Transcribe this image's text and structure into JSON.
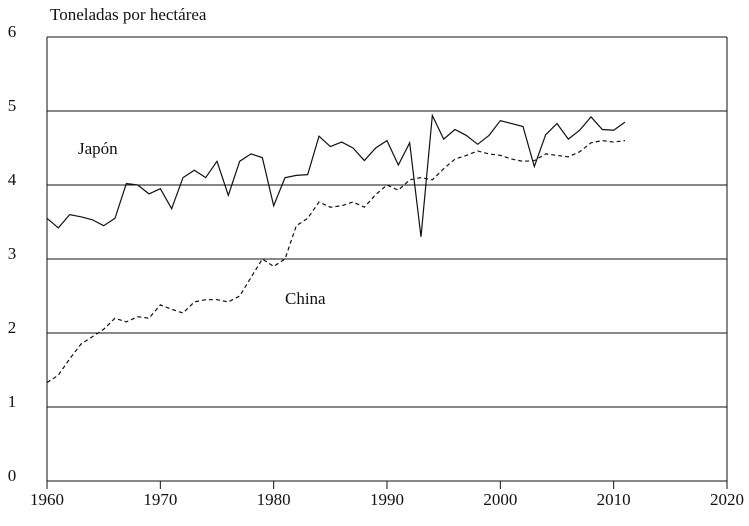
{
  "chart_data": {
    "type": "line",
    "y_label": "Toneladas por hectárea",
    "x": [
      1960,
      1961,
      1962,
      1963,
      1964,
      1965,
      1966,
      1967,
      1968,
      1969,
      1970,
      1971,
      1972,
      1973,
      1974,
      1975,
      1976,
      1977,
      1978,
      1979,
      1980,
      1981,
      1982,
      1983,
      1984,
      1985,
      1986,
      1987,
      1988,
      1989,
      1990,
      1991,
      1992,
      1993,
      1994,
      1995,
      1996,
      1997,
      1998,
      1999,
      2000,
      2001,
      2002,
      2003,
      2004,
      2005,
      2006,
      2007,
      2008,
      2009,
      2010,
      2011
    ],
    "series": [
      {
        "name": "Japón",
        "color": "#111111",
        "dash": false,
        "values": [
          3.55,
          3.42,
          3.6,
          3.57,
          3.53,
          3.45,
          3.55,
          4.02,
          4.0,
          3.88,
          3.95,
          3.68,
          4.1,
          4.2,
          4.1,
          4.32,
          3.86,
          4.32,
          4.42,
          4.37,
          3.72,
          4.1,
          4.13,
          4.14,
          4.66,
          4.52,
          4.58,
          4.5,
          4.33,
          4.5,
          4.6,
          4.27,
          4.57,
          3.3,
          4.94,
          4.62,
          4.75,
          4.67,
          4.55,
          4.67,
          4.87,
          4.83,
          4.79,
          4.25,
          4.68,
          4.83,
          4.62,
          4.74,
          4.92,
          4.75,
          4.74,
          4.85
        ]
      },
      {
        "name": "China",
        "color": "#111111",
        "dash": true,
        "values": [
          1.33,
          1.43,
          1.65,
          1.85,
          1.95,
          2.05,
          2.2,
          2.15,
          2.22,
          2.2,
          2.38,
          2.32,
          2.27,
          2.42,
          2.45,
          2.45,
          2.42,
          2.5,
          2.75,
          3.0,
          2.9,
          3.0,
          3.45,
          3.55,
          3.77,
          3.7,
          3.72,
          3.77,
          3.7,
          3.87,
          4.0,
          3.93,
          4.07,
          4.1,
          4.07,
          4.22,
          4.35,
          4.4,
          4.46,
          4.42,
          4.4,
          4.35,
          4.32,
          4.33,
          4.42,
          4.4,
          4.38,
          4.45,
          4.57,
          4.6,
          4.58,
          4.6
        ]
      }
    ],
    "xlim": [
      1960,
      2020
    ],
    "xticks": [
      1960,
      1970,
      1980,
      1990,
      2000,
      2010,
      2020
    ],
    "ylim": [
      0,
      6
    ],
    "yticks": [
      0,
      1,
      2,
      3,
      4,
      5,
      6
    ],
    "grid": true
  }
}
